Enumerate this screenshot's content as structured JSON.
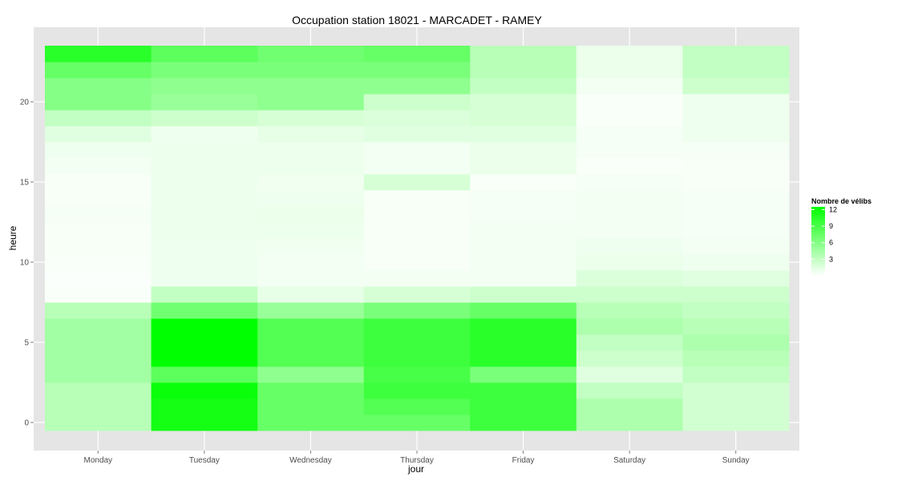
{
  "chart_data": {
    "type": "heatmap",
    "title": "Occupation station 18021 - MARCADET - RAMEY",
    "xlabel": "jour",
    "ylabel": "heure",
    "categories": [
      "Monday",
      "Tuesday",
      "Wednesday",
      "Thursday",
      "Friday",
      "Saturday",
      "Sunday"
    ],
    "hours": [
      0,
      1,
      2,
      3,
      4,
      5,
      6,
      7,
      8,
      9,
      10,
      11,
      12,
      13,
      14,
      15,
      16,
      17,
      18,
      19,
      20,
      21,
      22,
      23
    ],
    "y_ticks": [
      0,
      5,
      10,
      15,
      20
    ],
    "ylim": [
      -0.5,
      23.5
    ],
    "values": [
      [
        3.5,
        11.5,
        7.5,
        7.5,
        9.5,
        4,
        2.2
      ],
      [
        3.5,
        11.5,
        7.5,
        8.5,
        9.5,
        4,
        2.2
      ],
      [
        3.5,
        12,
        7.5,
        9.5,
        9.5,
        3,
        2.2
      ],
      [
        4.5,
        8,
        5.5,
        9,
        6.5,
        1.5,
        3
      ],
      [
        4.5,
        14,
        8.5,
        9.5,
        10.5,
        2.5,
        3.5
      ],
      [
        4.5,
        14,
        8.5,
        9.5,
        10.5,
        3,
        4
      ],
      [
        4.5,
        14,
        8.5,
        9.5,
        10.5,
        4,
        3.5
      ],
      [
        3.5,
        7,
        5,
        6.5,
        7.5,
        3.5,
        3
      ],
      [
        0.3,
        3,
        1.2,
        2,
        2.5,
        2.5,
        2.5
      ],
      [
        0.2,
        0.8,
        0.6,
        0.6,
        0.6,
        1.8,
        1.5
      ],
      [
        0.3,
        0.8,
        0.6,
        0.4,
        0.6,
        1,
        0.8
      ],
      [
        0.4,
        0.8,
        0.7,
        0.4,
        0.6,
        0.8,
        0.6
      ],
      [
        0.4,
        0.9,
        0.9,
        0.4,
        0.6,
        0.6,
        0.5
      ],
      [
        0.5,
        0.9,
        1,
        0.4,
        0.5,
        0.6,
        0.5
      ],
      [
        0.4,
        0.9,
        0.8,
        0.4,
        0.5,
        0.6,
        0.5
      ],
      [
        0.4,
        0.9,
        0.7,
        2,
        0.3,
        0.5,
        0.4
      ],
      [
        0.6,
        0.9,
        0.9,
        0.6,
        1,
        0.3,
        0.4
      ],
      [
        0.8,
        0.9,
        0.9,
        0.6,
        1,
        0.5,
        0.5
      ],
      [
        1.5,
        0.8,
        1.2,
        1.5,
        1.5,
        0.5,
        0.8
      ],
      [
        3,
        2.5,
        2,
        1.8,
        2,
        0.3,
        0.8
      ],
      [
        6,
        5,
        5.5,
        2.5,
        2,
        0.3,
        0.8
      ],
      [
        6,
        5.5,
        5.5,
        5.5,
        3,
        0.6,
        2.5
      ],
      [
        7.5,
        6.5,
        6.5,
        6.5,
        3.5,
        1,
        3
      ],
      [
        10.5,
        8,
        7,
        7.5,
        3.5,
        1,
        3
      ]
    ],
    "colorscale": {
      "low": "#ffffff",
      "high": "#00ff00",
      "min": 0,
      "max": 12.5
    },
    "legend": {
      "title": "Nombre de vélibs",
      "ticks": [
        3,
        6,
        9,
        12
      ],
      "placement": "right"
    },
    "grid": true,
    "panel_background": "#e5e5e5",
    "grid_color": "#ffffff"
  }
}
